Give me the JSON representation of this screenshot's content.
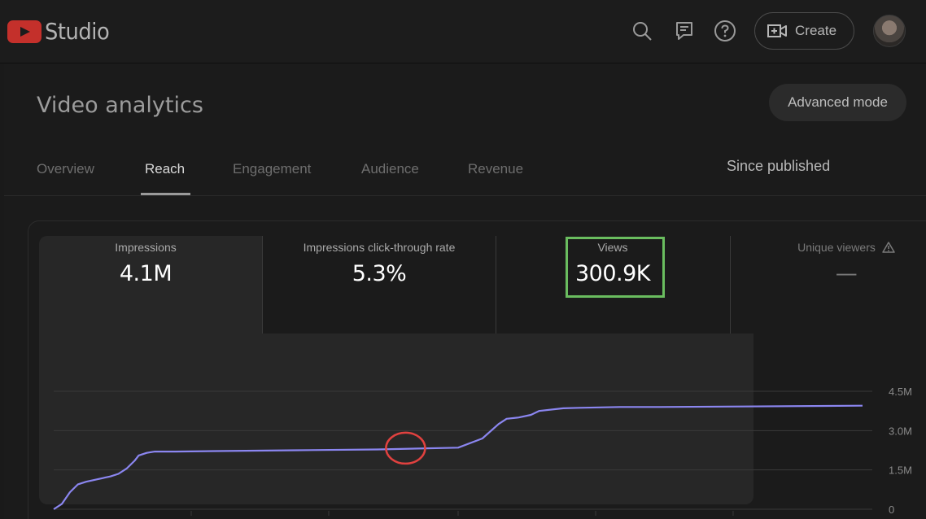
{
  "app": {
    "name": "Studio"
  },
  "topbar": {
    "icons": [
      "search-icon",
      "feedback-icon",
      "help-icon"
    ],
    "create_label": "Create"
  },
  "page": {
    "title": "Video analytics",
    "advanced_mode_label": "Advanced mode",
    "period": "Since published"
  },
  "tabs": [
    {
      "label": "Overview",
      "active": false
    },
    {
      "label": "Reach",
      "active": true
    },
    {
      "label": "Engagement",
      "active": false
    },
    {
      "label": "Audience",
      "active": false
    },
    {
      "label": "Revenue",
      "active": false
    }
  ],
  "metrics": [
    {
      "label": "Impressions",
      "value": "4.1M"
    },
    {
      "label": "Impressions click-through rate",
      "value": "5.3%"
    },
    {
      "label": "Views",
      "value": "300.9K"
    },
    {
      "label": "Unique viewers",
      "value": "—"
    }
  ],
  "colors": {
    "line": "#8b86f0",
    "views_highlight": "#6abd5f",
    "annotation_circle": "#e0413f",
    "brand": "#c4302b"
  },
  "chart_data": {
    "type": "line",
    "series_metric": "Impressions",
    "y_ticks": [
      "4.5M",
      "3.0M",
      "1.5M",
      "0"
    ],
    "ylim": [
      0,
      4.5
    ],
    "x": [
      0,
      0.01,
      0.02,
      0.03,
      0.04,
      0.055,
      0.07,
      0.08,
      0.09,
      0.1,
      0.105,
      0.115,
      0.125,
      0.135,
      0.15,
      0.2,
      0.3,
      0.4,
      0.5,
      0.53,
      0.55,
      0.56,
      0.575,
      0.59,
      0.6,
      0.63,
      0.65,
      0.7,
      0.75,
      0.85,
      1.0
    ],
    "y": [
      0.0,
      0.2,
      0.65,
      0.95,
      1.05,
      1.15,
      1.25,
      1.35,
      1.55,
      1.85,
      2.05,
      2.15,
      2.2,
      2.2,
      2.2,
      2.22,
      2.25,
      2.28,
      2.35,
      2.7,
      3.25,
      3.45,
      3.5,
      3.6,
      3.75,
      3.85,
      3.87,
      3.9,
      3.9,
      3.92,
      3.95
    ]
  }
}
